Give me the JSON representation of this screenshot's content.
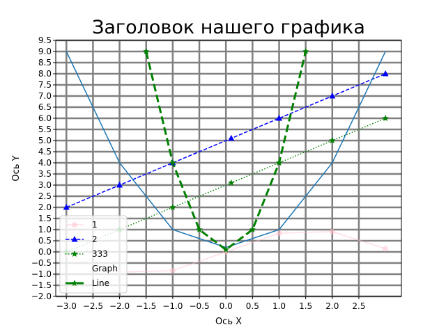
{
  "chart_data": {
    "type": "line",
    "title": "Заголовок нашего графика",
    "xlabel": "Ось X",
    "ylabel": "Ось Y",
    "xlim": [
      -3.2,
      3.3
    ],
    "ylim": [
      -2.0,
      9.5
    ],
    "xticks": [
      -3.0,
      -2.5,
      -2.0,
      -1.5,
      -1.0,
      -0.5,
      0.0,
      0.5,
      1.0,
      1.5,
      2.0,
      2.5
    ],
    "xtick_labels": [
      "−3.0",
      "−2.5",
      "−2.0",
      "−1.5",
      "−1.0",
      "−0.5",
      "0.0",
      "0.5",
      "1.0",
      "1.5",
      "2.0",
      "2.5"
    ],
    "yticks": [
      -2.0,
      -1.5,
      -1.0,
      -0.5,
      0.0,
      0.5,
      1.0,
      1.5,
      2.0,
      2.5,
      3.0,
      3.5,
      4.0,
      4.5,
      5.0,
      5.5,
      6.0,
      6.5,
      7.0,
      7.5,
      8.0,
      8.5,
      9.0,
      9.5
    ],
    "ytick_labels": [
      "−2.0",
      "−1.5",
      "−1.0",
      "−0.5",
      "0.0",
      "0.5",
      "1.0",
      "1.5",
      "2.0",
      "2.5",
      "3.0",
      "3.5",
      "4.0",
      "4.5",
      "5.0",
      "5.5",
      "6.0",
      "6.5",
      "7.0",
      "7.5",
      "8.0",
      "8.5",
      "9.0",
      "9.5"
    ],
    "grid": true,
    "grid_color": "#808080",
    "legend_position": "lower-left",
    "series": [
      {
        "name": "1",
        "color": "#ffc0cb",
        "linestyle": "solid",
        "marker": "circle",
        "x": [
          -3,
          -2,
          -1,
          0,
          1,
          2,
          3
        ],
        "y": [
          -0.14,
          -0.91,
          -0.84,
          0.0,
          0.84,
          0.91,
          0.14
        ]
      },
      {
        "name": "2",
        "color": "#0000ff",
        "linestyle": "dashed",
        "marker": "triangle",
        "x": [
          -3,
          -2,
          -1,
          0.1,
          1,
          2,
          3
        ],
        "y": [
          2,
          3,
          4,
          5.1,
          6,
          7,
          8
        ]
      },
      {
        "name": "333",
        "color": "#008000",
        "linestyle": "dotted",
        "marker": "star",
        "x": [
          -3,
          -2,
          -1,
          0.1,
          1,
          2,
          3
        ],
        "y": [
          0,
          1,
          2,
          3.1,
          4,
          5,
          6
        ]
      },
      {
        "name": "Graph",
        "color": "#1f77b4",
        "linestyle": "solid",
        "marker": "none",
        "legend_visible_line": false,
        "x": [
          -3,
          -2,
          -1,
          0,
          1,
          2,
          3
        ],
        "y": [
          9,
          4,
          1,
          0.2,
          1,
          4,
          9
        ]
      },
      {
        "name": "Line",
        "color": "#008000",
        "linestyle": "dashed-thick",
        "marker": "star",
        "x": [
          -1.5,
          -1,
          -0.5,
          0,
          0.5,
          1,
          1.5
        ],
        "y": [
          9,
          4,
          1,
          0.1,
          1,
          4,
          9
        ]
      }
    ]
  }
}
